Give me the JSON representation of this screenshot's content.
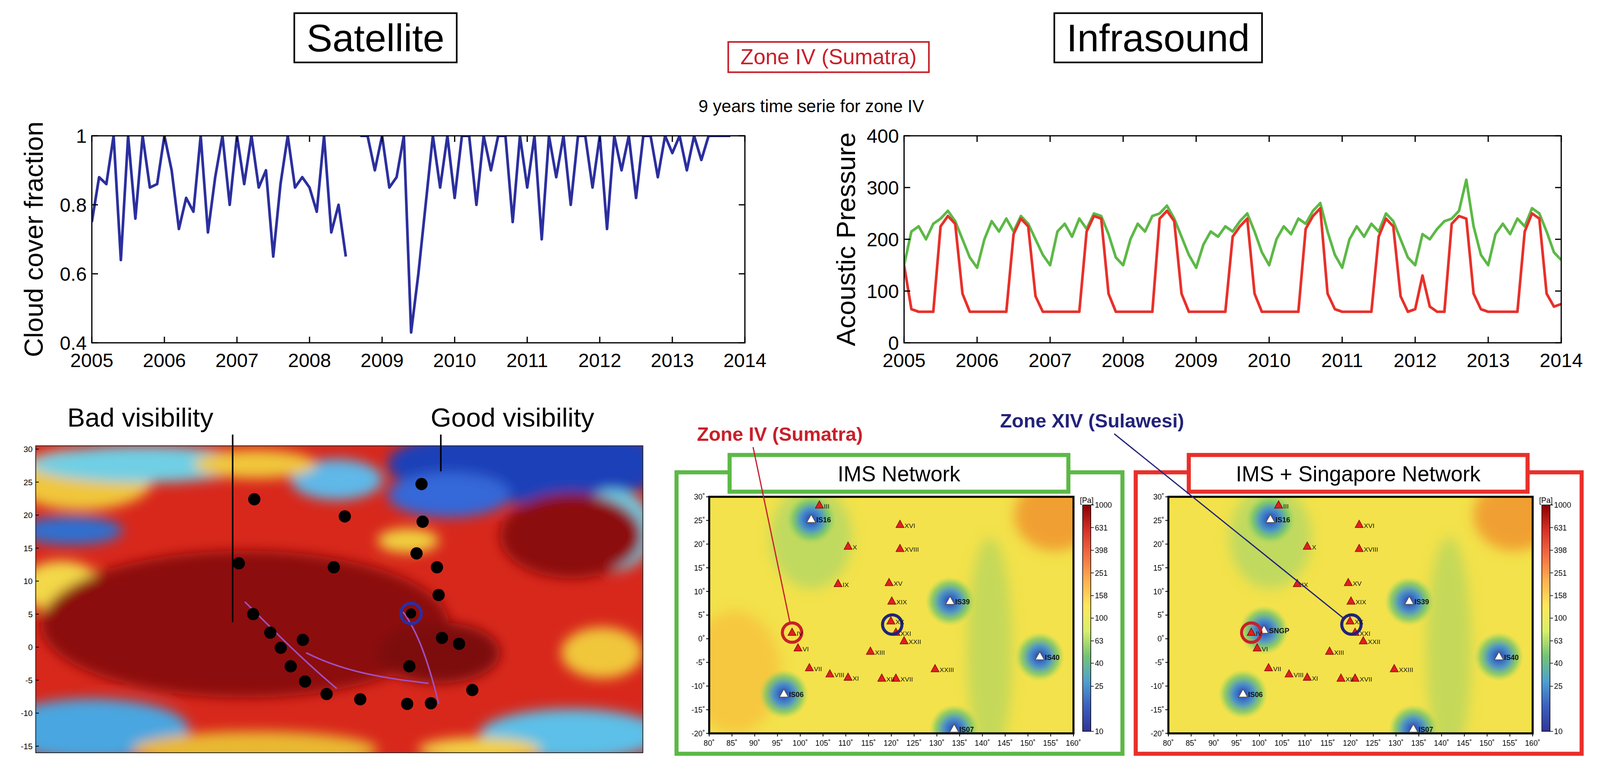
{
  "header": {
    "left_title": "Satellite",
    "right_title": "Infrasound",
    "zone": "Zone IV (Sumatra)",
    "subtitle": "9 years time serie for zone IV"
  },
  "chart_data": [
    {
      "type": "line",
      "ylabel": "Cloud cover fraction",
      "color": "#2b2f9e",
      "x": [
        2005,
        2005.1,
        2005.2,
        2005.3,
        2005.4,
        2005.5,
        2005.6,
        2005.7,
        2005.8,
        2005.9,
        2006,
        2006.1,
        2006.2,
        2006.3,
        2006.4,
        2006.5,
        2006.6,
        2006.7,
        2006.8,
        2006.9,
        2007,
        2007.1,
        2007.2,
        2007.3,
        2007.4,
        2007.5,
        2007.6,
        2007.7,
        2007.8,
        2007.9,
        2008,
        2008.1,
        2008.2,
        2008.3,
        2008.4,
        2008.5,
        2008.6,
        2008.7,
        2008.8,
        2008.9,
        2009,
        2009.1,
        2009.2,
        2009.3,
        2009.4,
        2009.5,
        2009.6,
        2009.7,
        2009.8,
        2009.9,
        2010,
        2010.1,
        2010.2,
        2010.3,
        2010.4,
        2010.5,
        2010.6,
        2010.7,
        2010.8,
        2010.9,
        2011,
        2011.1,
        2011.2,
        2011.3,
        2011.4,
        2011.5,
        2011.6,
        2011.7,
        2011.8,
        2011.9,
        2012,
        2012.1,
        2012.2,
        2012.3,
        2012.4,
        2012.5,
        2012.6,
        2012.7,
        2012.8,
        2012.9,
        2013,
        2013.1,
        2013.2,
        2013.3,
        2013.4,
        2013.5,
        2013.6,
        2013.7,
        2013.8
      ],
      "values": [
        0.75,
        0.88,
        0.86,
        1,
        0.64,
        1,
        0.76,
        1,
        0.85,
        0.86,
        1,
        0.9,
        0.73,
        0.82,
        0.78,
        1,
        0.72,
        0.88,
        1,
        0.8,
        1,
        0.86,
        1,
        0.85,
        0.9,
        0.65,
        0.86,
        1,
        0.85,
        0.88,
        0.85,
        0.78,
        1,
        0.72,
        0.8,
        0.65,
        null,
        1,
        1,
        0.9,
        1,
        0.85,
        0.88,
        1,
        0.43,
        0.6,
        0.8,
        1,
        0.85,
        1,
        0.82,
        1,
        1,
        0.8,
        1,
        0.9,
        1,
        1,
        0.75,
        1,
        0.85,
        1,
        0.7,
        1,
        0.88,
        1,
        0.8,
        1,
        1,
        0.85,
        1,
        0.73,
        1,
        0.9,
        1,
        0.82,
        1,
        1,
        0.88,
        1,
        0.95,
        1,
        0.9,
        1,
        0.93,
        1,
        1,
        1,
        1
      ],
      "xlim": [
        2005,
        2014
      ],
      "xticks": [
        2005,
        2006,
        2007,
        2008,
        2009,
        2010,
        2011,
        2012,
        2013,
        2014
      ],
      "ylim": [
        0.4,
        1
      ],
      "yticks": [
        0.4,
        0.6,
        0.8,
        1
      ]
    },
    {
      "type": "line",
      "ylabel": "Acoustic Pressure",
      "x": [
        2005,
        2005.1,
        2005.2,
        2005.3,
        2005.4,
        2005.5,
        2005.6,
        2005.7,
        2005.8,
        2005.9,
        2006,
        2006.1,
        2006.2,
        2006.3,
        2006.4,
        2006.5,
        2006.6,
        2006.7,
        2006.8,
        2006.9,
        2007,
        2007.1,
        2007.2,
        2007.3,
        2007.4,
        2007.5,
        2007.6,
        2007.7,
        2007.8,
        2007.9,
        2008,
        2008.1,
        2008.2,
        2008.3,
        2008.4,
        2008.5,
        2008.6,
        2008.7,
        2008.8,
        2008.9,
        2009,
        2009.1,
        2009.2,
        2009.3,
        2009.4,
        2009.5,
        2009.6,
        2009.7,
        2009.8,
        2009.9,
        2010,
        2010.1,
        2010.2,
        2010.3,
        2010.4,
        2010.5,
        2010.6,
        2010.7,
        2010.8,
        2010.9,
        2011,
        2011.1,
        2011.2,
        2011.3,
        2011.4,
        2011.5,
        2011.6,
        2011.7,
        2011.8,
        2011.9,
        2012,
        2012.1,
        2012.2,
        2012.3,
        2012.4,
        2012.5,
        2012.6,
        2012.7,
        2012.8,
        2012.9,
        2013,
        2013.1,
        2013.2,
        2013.3,
        2013.4,
        2013.5,
        2013.6,
        2013.7,
        2013.8,
        2013.9,
        2014
      ],
      "series": [
        {
          "color": "#5cb946",
          "values": [
            150,
            215,
            225,
            200,
            230,
            240,
            255,
            235,
            200,
            165,
            145,
            200,
            235,
            215,
            240,
            215,
            245,
            230,
            200,
            170,
            150,
            215,
            230,
            205,
            240,
            220,
            250,
            245,
            210,
            165,
            150,
            200,
            230,
            215,
            245,
            250,
            265,
            240,
            205,
            170,
            145,
            190,
            215,
            205,
            225,
            215,
            235,
            250,
            215,
            175,
            150,
            200,
            225,
            210,
            240,
            230,
            255,
            270,
            215,
            170,
            145,
            200,
            225,
            205,
            230,
            215,
            250,
            235,
            200,
            165,
            150,
            210,
            200,
            220,
            235,
            240,
            255,
            315,
            225,
            170,
            150,
            210,
            230,
            210,
            240,
            225,
            260,
            250,
            215,
            175,
            160
          ]
        },
        {
          "color": "#e8302a",
          "values": [
            150,
            65,
            60,
            60,
            60,
            225,
            245,
            230,
            95,
            60,
            60,
            60,
            60,
            60,
            60,
            210,
            240,
            225,
            90,
            60,
            60,
            60,
            60,
            60,
            60,
            215,
            245,
            240,
            95,
            60,
            60,
            60,
            60,
            60,
            60,
            240,
            255,
            235,
            95,
            60,
            60,
            60,
            60,
            60,
            60,
            205,
            225,
            240,
            95,
            60,
            60,
            60,
            60,
            60,
            60,
            220,
            245,
            260,
            95,
            65,
            60,
            60,
            60,
            60,
            60,
            205,
            240,
            225,
            90,
            60,
            65,
            130,
            70,
            60,
            60,
            230,
            245,
            240,
            95,
            65,
            60,
            60,
            60,
            60,
            60,
            215,
            250,
            240,
            95,
            70,
            75
          ]
        }
      ],
      "xlim": [
        2005,
        2014
      ],
      "xticks": [
        2005,
        2006,
        2007,
        2008,
        2009,
        2010,
        2011,
        2012,
        2013,
        2014
      ],
      "ylim": [
        0,
        400
      ],
      "yticks": [
        0,
        100,
        200,
        300,
        400
      ]
    }
  ],
  "satellite_image": {
    "annotations": [
      "Bad visibility",
      "Good visibility"
    ],
    "xlim": [
      60,
      170
    ],
    "ylim": [
      -16,
      30.5
    ],
    "yticks": [
      30,
      25,
      20,
      15,
      10,
      5,
      0,
      -5,
      -10,
      -15
    ],
    "tick_labels": "y",
    "points": {
      "lon": [
        99.6,
        116.0,
        96.8,
        114.0,
        129.9,
        130.1,
        129.0,
        132.7,
        133.0,
        99.4,
        102.5,
        104.4,
        108.4,
        106.2,
        108.8,
        112.7,
        118.8,
        133.6,
        136.7,
        127.7,
        127.3,
        131.6,
        139.1
      ],
      "lat": [
        22.4,
        19.8,
        12.7,
        12.1,
        24.7,
        19.0,
        14.2,
        12.1,
        7.9,
        5.0,
        2.2,
        -0.1,
        1.1,
        -2.9,
        -5.2,
        -7.1,
        -7.9,
        1.4,
        0.5,
        -2.9,
        -8.6,
        -8.5,
        -6.5
      ]
    },
    "highlight": {
      "lon": 128.0,
      "lat": 5.1,
      "color": "#2a2fa0"
    }
  },
  "maps": {
    "xlim": [
      80,
      160
    ],
    "ylim": [
      -20,
      30
    ],
    "xticks": [
      {
        "value": 80,
        "label": "80˚"
      },
      {
        "value": 85,
        "label": "85˚"
      },
      {
        "value": 90,
        "label": "90˚"
      },
      {
        "value": 95,
        "label": "95˚"
      },
      {
        "value": 100,
        "label": "100˚"
      },
      {
        "value": 105,
        "label": "105˚"
      },
      {
        "value": 110,
        "label": "110˚"
      },
      {
        "value": 115,
        "label": "115˚"
      },
      {
        "value": 120,
        "label": "120˚"
      },
      {
        "value": 125,
        "label": "125˚"
      },
      {
        "value": 130,
        "label": "130˚"
      },
      {
        "value": 135,
        "label": "135˚"
      },
      {
        "value": 140,
        "label": "140˚"
      },
      {
        "value": 145,
        "label": "145˚"
      },
      {
        "value": 150,
        "label": "150˚"
      },
      {
        "value": 155,
        "label": "155˚"
      },
      {
        "value": 160,
        "label": "160˚"
      }
    ],
    "yticks": [
      {
        "value": 30,
        "label": "30˚"
      },
      {
        "value": 25,
        "label": "25˚"
      },
      {
        "value": 20,
        "label": "20˚"
      },
      {
        "value": 15,
        "label": "15˚"
      },
      {
        "value": 10,
        "label": "10˚"
      },
      {
        "value": 5,
        "label": "5˚"
      },
      {
        "value": 0,
        "label": "0˚"
      },
      {
        "value": -5,
        "label": "-5˚"
      },
      {
        "value": -10,
        "label": "-10˚"
      },
      {
        "value": -15,
        "label": "-15˚"
      },
      {
        "value": -20,
        "label": "-20˚"
      }
    ],
    "colorbar": {
      "label": "[Pa]",
      "lim": [
        10,
        1000
      ],
      "ticks": [
        10,
        25,
        40,
        63,
        100,
        158,
        251,
        398,
        631,
        1000
      ],
      "log": true
    },
    "stations": [
      {
        "label": "IS16",
        "lon": 102.4,
        "lat": 25.2
      },
      {
        "label": "IS39",
        "lon": 132.9,
        "lat": 7.9
      },
      {
        "label": "IS40",
        "lon": 152.6,
        "lat": -3.8
      },
      {
        "label": "IS06",
        "lon": 96.4,
        "lat": -11.7
      },
      {
        "label": "IS07",
        "lon": 133.8,
        "lat": -19.1
      }
    ],
    "zones": [
      {
        "label": "III",
        "lon": 104.2,
        "lat": 28.2
      },
      {
        "label": "XVI",
        "lon": 121.9,
        "lat": 24.1
      },
      {
        "label": "X",
        "lon": 110.5,
        "lat": 19.5
      },
      {
        "label": "XVIII",
        "lon": 121.9,
        "lat": 19.0
      },
      {
        "label": "IX",
        "lon": 108.3,
        "lat": 11.6
      },
      {
        "label": "XV",
        "lon": 119.5,
        "lat": 11.8
      },
      {
        "label": "XIX",
        "lon": 120.1,
        "lat": 7.9
      },
      {
        "label": "XX",
        "lon": 119.9,
        "lat": 3.7
      },
      {
        "label": "XXI",
        "lon": 121.0,
        "lat": 1.3
      },
      {
        "label": "XXII",
        "lon": 122.8,
        "lat": -0.5
      },
      {
        "label": "IV",
        "lon": 98.2,
        "lat": 1.3
      },
      {
        "label": "VI",
        "lon": 99.5,
        "lat": -2.0
      },
      {
        "label": "XIII",
        "lon": 115.4,
        "lat": -2.7
      },
      {
        "label": "VII",
        "lon": 102.0,
        "lat": -6.2
      },
      {
        "label": "VIII",
        "lon": 106.5,
        "lat": -7.5
      },
      {
        "label": "XI",
        "lon": 110.5,
        "lat": -8.2
      },
      {
        "label": "XII",
        "lon": 117.9,
        "lat": -8.4
      },
      {
        "label": "XVII",
        "lon": 121.0,
        "lat": -8.4
      },
      {
        "label": "XXIII",
        "lon": 129.6,
        "lat": -6.4
      }
    ],
    "panels": [
      {
        "title": "IMS Network",
        "color": "#5cb946"
      },
      {
        "title": "IMS + Singapore Network",
        "color": "#e8302a",
        "extra_stations": [
          {
            "label": "SNGP",
            "lon": 101.0,
            "lat": 1.8
          }
        ]
      }
    ],
    "highlights": [
      {
        "label": "Zone IV (Sumatra)",
        "lon": 98.2,
        "lat": 1.3,
        "color": "#c8202a"
      },
      {
        "label": "Zone XIV (Sulawesi)",
        "lon": 120.2,
        "lat": 3.0,
        "color": "#22237a"
      }
    ]
  }
}
